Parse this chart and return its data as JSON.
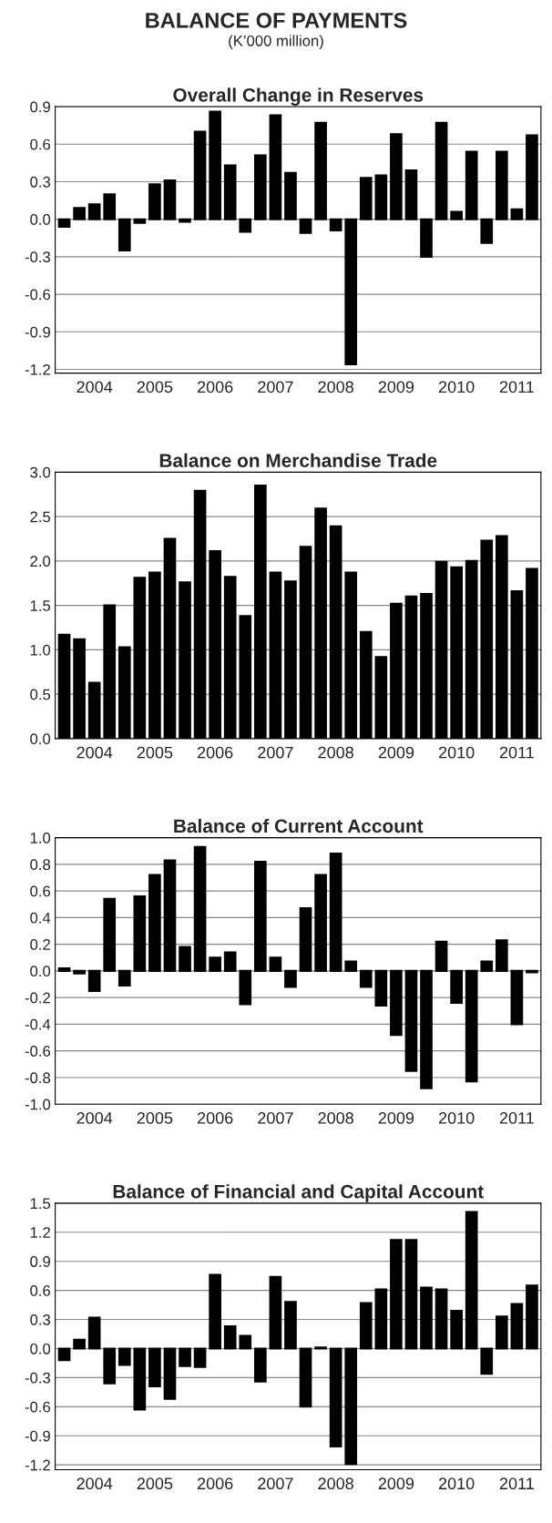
{
  "chart_data": [
    {
      "type": "bar",
      "title": "Overall Change in Reserves",
      "color": "#000000",
      "grid": "y",
      "annotations": [
        "BALANCE OF PAYMENTS",
        "(K’000 million)"
      ],
      "categories": [
        null,
        null,
        "2004",
        null,
        null,
        null,
        "2005",
        null,
        null,
        null,
        "2006",
        null,
        null,
        null,
        "2007",
        null,
        null,
        null,
        "2008",
        null,
        null,
        null,
        "2009",
        null,
        null,
        null,
        "2010",
        null,
        null,
        null,
        "2011",
        null
      ],
      "values": [
        -0.06,
        0.09,
        0.12,
        0.2,
        -0.25,
        -0.03,
        0.28,
        0.31,
        -0.02,
        0.7,
        0.86,
        0.43,
        -0.1,
        0.51,
        0.83,
        0.37,
        -0.11,
        0.77,
        -0.09,
        -1.16,
        0.33,
        0.35,
        0.68,
        0.39,
        -0.3,
        0.77,
        0.06,
        0.54,
        -0.19,
        0.54,
        0.08,
        0.67
      ],
      "ylim": [
        -1.23,
        0.9
      ],
      "yticks": [
        -1.2,
        -0.9,
        -0.6,
        -0.3,
        {
          "value": 0,
          "label": "0.0"
        },
        0.3,
        0.6,
        0.9
      ]
    },
    {
      "type": "bar",
      "title": "Balance on Merchandise Trade",
      "color": "#000000",
      "grid": "y",
      "categories": [
        null,
        null,
        "2004",
        null,
        null,
        null,
        "2005",
        null,
        null,
        null,
        "2006",
        null,
        null,
        null,
        "2007",
        null,
        null,
        null,
        "2008",
        null,
        null,
        null,
        "2009",
        null,
        null,
        null,
        "2010",
        null,
        null,
        null,
        "2011",
        null
      ],
      "values": [
        1.17,
        1.12,
        0.63,
        1.5,
        1.03,
        1.81,
        1.87,
        2.25,
        1.76,
        2.79,
        2.11,
        1.82,
        1.38,
        2.85,
        1.87,
        1.77,
        2.16,
        2.59,
        2.39,
        1.87,
        1.2,
        0.92,
        1.52,
        1.6,
        1.63,
        1.99,
        1.93,
        2.0,
        2.23,
        2.28,
        1.66,
        1.91
      ],
      "ylim": [
        0,
        3
      ],
      "yticks": [
        {
          "value": 0,
          "label": "0.0"
        },
        0.5,
        {
          "value": 1,
          "label": "1.0"
        },
        1.5,
        {
          "value": 2,
          "label": "2.0"
        },
        2.5,
        {
          "value": 3,
          "label": "3.0"
        }
      ]
    },
    {
      "type": "bar",
      "title": "Balance of Current Account",
      "color": "#000000",
      "grid": "y",
      "categories": [
        null,
        null,
        "2004",
        null,
        null,
        null,
        "2005",
        null,
        null,
        null,
        "2006",
        null,
        null,
        null,
        "2007",
        null,
        null,
        null,
        "2008",
        null,
        null,
        null,
        "2009",
        null,
        null,
        null,
        "2010",
        null,
        null,
        null,
        "2011",
        null
      ],
      "values": [
        0.02,
        -0.02,
        -0.15,
        0.54,
        -0.11,
        0.56,
        0.72,
        0.83,
        0.18,
        0.93,
        0.1,
        0.14,
        -0.25,
        0.82,
        0.1,
        -0.12,
        0.47,
        0.72,
        0.88,
        0.07,
        -0.12,
        -0.26,
        -0.48,
        -0.75,
        -0.88,
        0.22,
        -0.24,
        -0.83,
        0.07,
        0.23,
        -0.4,
        -0.01
      ],
      "ylim": [
        -1,
        1
      ],
      "yticks": [
        {
          "value": -1,
          "label": "-1.0"
        },
        -0.8,
        -0.6,
        -0.4,
        -0.2,
        {
          "value": 0,
          "label": "0.0"
        },
        0.2,
        0.4,
        0.6,
        0.8,
        {
          "value": 1,
          "label": "1.0"
        }
      ]
    },
    {
      "type": "bar",
      "title": "Balance of Financial and Capital Account",
      "color": "#000000",
      "grid": "y",
      "categories": [
        null,
        null,
        "2004",
        null,
        null,
        null,
        "2005",
        null,
        null,
        null,
        "2006",
        null,
        null,
        null,
        "2007",
        null,
        null,
        null,
        "2008",
        null,
        null,
        null,
        "2009",
        null,
        null,
        null,
        "2010",
        null,
        null,
        null,
        "2011",
        null
      ],
      "values": [
        -0.12,
        0.09,
        0.32,
        -0.36,
        -0.17,
        -0.63,
        -0.39,
        -0.52,
        -0.18,
        -0.19,
        0.76,
        0.23,
        0.13,
        -0.34,
        0.74,
        0.48,
        -0.6,
        0.01,
        -1.01,
        -1.19,
        0.47,
        0.61,
        1.12,
        1.12,
        0.63,
        0.61,
        0.39,
        1.41,
        -0.26,
        0.33,
        0.46,
        0.65
      ],
      "ylim": [
        -1.25,
        1.5
      ],
      "yticks": [
        -1.2,
        -0.9,
        -0.6,
        -0.3,
        {
          "value": 0,
          "label": "0.0"
        },
        0.3,
        0.6,
        0.9,
        1.2,
        1.5
      ]
    }
  ]
}
